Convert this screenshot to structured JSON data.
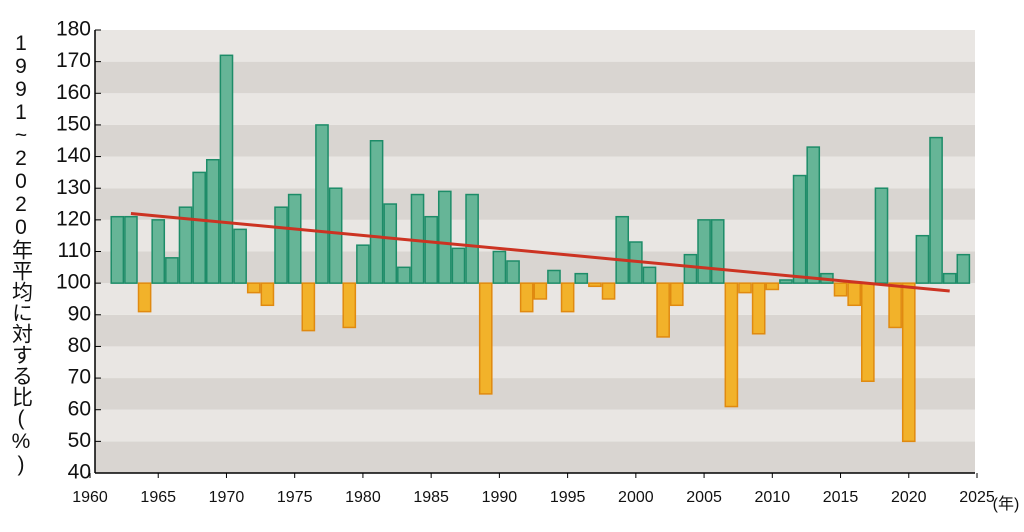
{
  "chart_data": {
    "type": "bar",
    "y_label": "1991~2020年平均に対する比(%)",
    "x_unit": "(年)",
    "x": [
      1962,
      1963,
      1964,
      1965,
      1966,
      1967,
      1968,
      1969,
      1970,
      1971,
      1972,
      1973,
      1974,
      1975,
      1976,
      1977,
      1978,
      1979,
      1980,
      1981,
      1982,
      1983,
      1984,
      1985,
      1986,
      1987,
      1988,
      1989,
      1990,
      1991,
      1992,
      1993,
      1994,
      1995,
      1996,
      1997,
      1998,
      1999,
      2000,
      2001,
      2002,
      2003,
      2004,
      2005,
      2006,
      2007,
      2008,
      2009,
      2010,
      2011,
      2012,
      2013,
      2014,
      2015,
      2016,
      2017,
      2018,
      2019,
      2020,
      2021,
      2022,
      2023,
      2024
    ],
    "values": [
      121,
      121,
      91,
      120,
      108,
      124,
      135,
      139,
      172,
      117,
      97,
      93,
      124,
      128,
      85,
      150,
      130,
      86,
      112,
      145,
      125,
      105,
      128,
      121,
      129,
      111,
      128,
      65,
      110,
      107,
      91,
      95,
      104,
      91,
      103,
      99,
      95,
      121,
      113,
      105,
      83,
      93,
      109,
      120,
      120,
      61,
      97,
      84,
      98,
      101,
      134,
      143,
      103,
      96,
      93,
      69,
      130,
      86,
      50,
      115,
      146,
      103,
      109
    ],
    "baseline": 100,
    "positive_color": "#66b597",
    "positive_edge": "#1d8c68",
    "negative_color": "#f2b22a",
    "negative_edge": "#e08a10",
    "trend": {
      "x": [
        1963,
        2023
      ],
      "values": [
        122,
        97.5
      ],
      "color": "#cc3322"
    },
    "xlim": [
      1960,
      2025
    ],
    "ylim": [
      40,
      180
    ],
    "xticks": [
      1960,
      1965,
      1970,
      1975,
      1980,
      1985,
      1990,
      1995,
      2000,
      2005,
      2010,
      2015,
      2020,
      2025
    ],
    "yticks": [
      40,
      50,
      60,
      70,
      80,
      90,
      100,
      110,
      120,
      130,
      140,
      150,
      160,
      170,
      180
    ],
    "grid": "bands"
  }
}
